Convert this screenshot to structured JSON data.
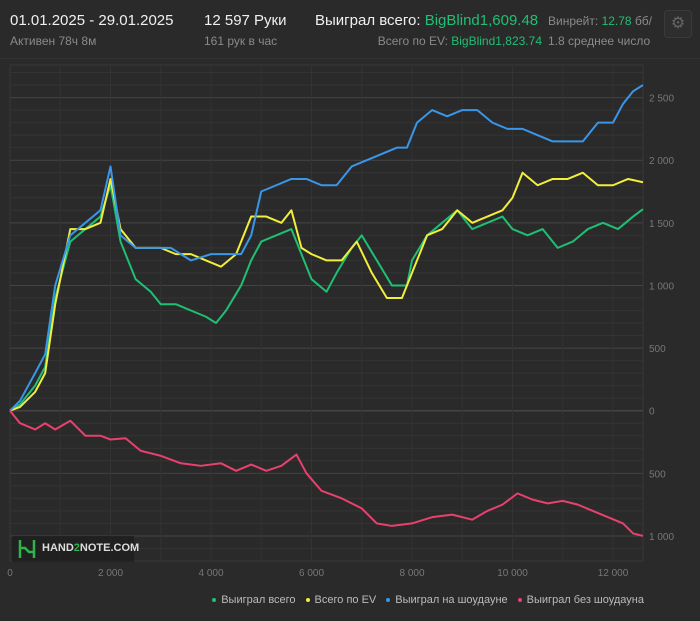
{
  "header": {
    "date_range": "01.01.2025 - 29.01.2025",
    "active": "Активен 78ч 8м",
    "hands": "12 597 Руки",
    "hands_per_hour": "161 рук в час",
    "won_total_label": "Выиграл всего:",
    "won_total_value": "BigBlind1,609.48",
    "ev_label": "Всего по EV:",
    "ev_value": "BigBlind1,823.74",
    "winrate_label": "Винрейт:",
    "winrate_value": "12.78",
    "winrate_unit": "бб/",
    "winrate_sub": "1.8 среднее число",
    "settings_icon": "gear-icon"
  },
  "logo": {
    "text_a": "HAND",
    "text_b": "2",
    "text_c": "NOTE.COM"
  },
  "chart_data": {
    "type": "line",
    "xlim": [
      0,
      12597
    ],
    "ylim": [
      -1200,
      2760
    ],
    "x_ticks": [
      0,
      2000,
      4000,
      6000,
      8000,
      10000,
      12000
    ],
    "x_tick_labels": [
      "0",
      "2 000",
      "4 000",
      "6 000",
      "8 000",
      "10 000",
      "12 000"
    ],
    "y_ticks": [
      2500,
      2000,
      1500,
      1000,
      500,
      0,
      -500,
      -1000
    ],
    "y_tick_labels": [
      "2 500",
      "2 000",
      "1 500",
      "1 000",
      "500",
      "0",
      "500",
      "1 000"
    ],
    "grid": true,
    "legend_position": "bottom-right",
    "series": [
      {
        "name": "Выиграл всего",
        "color": "#1fbf74",
        "points": [
          [
            0,
            0
          ],
          [
            200,
            50
          ],
          [
            500,
            200
          ],
          [
            700,
            350
          ],
          [
            900,
            900
          ],
          [
            1200,
            1350
          ],
          [
            1500,
            1450
          ],
          [
            1800,
            1550
          ],
          [
            2000,
            1800
          ],
          [
            2200,
            1350
          ],
          [
            2500,
            1050
          ],
          [
            2800,
            950
          ],
          [
            3000,
            850
          ],
          [
            3300,
            850
          ],
          [
            3600,
            800
          ],
          [
            3900,
            750
          ],
          [
            4100,
            700
          ],
          [
            4300,
            800
          ],
          [
            4600,
            1000
          ],
          [
            4800,
            1200
          ],
          [
            5000,
            1350
          ],
          [
            5300,
            1400
          ],
          [
            5600,
            1450
          ],
          [
            5800,
            1250
          ],
          [
            6000,
            1050
          ],
          [
            6300,
            950
          ],
          [
            6500,
            1100
          ],
          [
            6800,
            1300
          ],
          [
            7000,
            1400
          ],
          [
            7300,
            1200
          ],
          [
            7600,
            1000
          ],
          [
            7900,
            1000
          ],
          [
            8000,
            1200
          ],
          [
            8300,
            1400
          ],
          [
            8600,
            1500
          ],
          [
            8900,
            1600
          ],
          [
            9200,
            1450
          ],
          [
            9500,
            1500
          ],
          [
            9800,
            1550
          ],
          [
            10000,
            1450
          ],
          [
            10300,
            1400
          ],
          [
            10600,
            1450
          ],
          [
            10900,
            1300
          ],
          [
            11200,
            1350
          ],
          [
            11500,
            1450
          ],
          [
            11800,
            1500
          ],
          [
            12100,
            1450
          ],
          [
            12400,
            1550
          ],
          [
            12597,
            1609
          ]
        ]
      },
      {
        "name": "Всего по EV",
        "color": "#f2ee3b",
        "points": [
          [
            0,
            0
          ],
          [
            200,
            30
          ],
          [
            500,
            150
          ],
          [
            700,
            300
          ],
          [
            900,
            850
          ],
          [
            1200,
            1450
          ],
          [
            1500,
            1450
          ],
          [
            1800,
            1500
          ],
          [
            2000,
            1850
          ],
          [
            2200,
            1450
          ],
          [
            2500,
            1300
          ],
          [
            2800,
            1300
          ],
          [
            3000,
            1300
          ],
          [
            3300,
            1250
          ],
          [
            3600,
            1250
          ],
          [
            3900,
            1200
          ],
          [
            4200,
            1150
          ],
          [
            4500,
            1250
          ],
          [
            4800,
            1550
          ],
          [
            5100,
            1550
          ],
          [
            5400,
            1500
          ],
          [
            5600,
            1600
          ],
          [
            5800,
            1300
          ],
          [
            6000,
            1250
          ],
          [
            6300,
            1200
          ],
          [
            6600,
            1200
          ],
          [
            6900,
            1350
          ],
          [
            7200,
            1100
          ],
          [
            7500,
            900
          ],
          [
            7800,
            900
          ],
          [
            8000,
            1100
          ],
          [
            8300,
            1400
          ],
          [
            8600,
            1450
          ],
          [
            8900,
            1600
          ],
          [
            9200,
            1500
          ],
          [
            9500,
            1550
          ],
          [
            9800,
            1600
          ],
          [
            10000,
            1700
          ],
          [
            10200,
            1900
          ],
          [
            10500,
            1800
          ],
          [
            10800,
            1850
          ],
          [
            11100,
            1850
          ],
          [
            11400,
            1900
          ],
          [
            11700,
            1800
          ],
          [
            12000,
            1800
          ],
          [
            12300,
            1850
          ],
          [
            12597,
            1824
          ]
        ]
      },
      {
        "name": "Выиграл на шоудауне",
        "color": "#3a96e8",
        "points": [
          [
            0,
            0
          ],
          [
            200,
            80
          ],
          [
            500,
            300
          ],
          [
            700,
            450
          ],
          [
            900,
            1000
          ],
          [
            1200,
            1400
          ],
          [
            1500,
            1500
          ],
          [
            1800,
            1600
          ],
          [
            2000,
            1950
          ],
          [
            2200,
            1400
          ],
          [
            2500,
            1300
          ],
          [
            2800,
            1300
          ],
          [
            3200,
            1300
          ],
          [
            3600,
            1200
          ],
          [
            4000,
            1250
          ],
          [
            4300,
            1250
          ],
          [
            4600,
            1250
          ],
          [
            4800,
            1400
          ],
          [
            5000,
            1750
          ],
          [
            5300,
            1800
          ],
          [
            5600,
            1850
          ],
          [
            5900,
            1850
          ],
          [
            6200,
            1800
          ],
          [
            6500,
            1800
          ],
          [
            6800,
            1950
          ],
          [
            7100,
            2000
          ],
          [
            7400,
            2050
          ],
          [
            7700,
            2100
          ],
          [
            7900,
            2100
          ],
          [
            8100,
            2300
          ],
          [
            8400,
            2400
          ],
          [
            8700,
            2350
          ],
          [
            9000,
            2400
          ],
          [
            9300,
            2400
          ],
          [
            9600,
            2300
          ],
          [
            9900,
            2250
          ],
          [
            10200,
            2250
          ],
          [
            10500,
            2200
          ],
          [
            10800,
            2150
          ],
          [
            11100,
            2150
          ],
          [
            11400,
            2150
          ],
          [
            11700,
            2300
          ],
          [
            12000,
            2300
          ],
          [
            12200,
            2450
          ],
          [
            12400,
            2550
          ],
          [
            12597,
            2600
          ]
        ]
      },
      {
        "name": "Выиграл без шоудауна",
        "color": "#e8416f",
        "points": [
          [
            0,
            0
          ],
          [
            200,
            -100
          ],
          [
            500,
            -150
          ],
          [
            700,
            -100
          ],
          [
            900,
            -150
          ],
          [
            1200,
            -80
          ],
          [
            1500,
            -200
          ],
          [
            1800,
            -200
          ],
          [
            2000,
            -230
          ],
          [
            2300,
            -220
          ],
          [
            2600,
            -320
          ],
          [
            3000,
            -360
          ],
          [
            3400,
            -420
          ],
          [
            3800,
            -440
          ],
          [
            4200,
            -420
          ],
          [
            4500,
            -480
          ],
          [
            4800,
            -430
          ],
          [
            5100,
            -480
          ],
          [
            5400,
            -440
          ],
          [
            5700,
            -350
          ],
          [
            5900,
            -500
          ],
          [
            6200,
            -640
          ],
          [
            6600,
            -700
          ],
          [
            7000,
            -780
          ],
          [
            7300,
            -900
          ],
          [
            7600,
            -920
          ],
          [
            8000,
            -900
          ],
          [
            8400,
            -850
          ],
          [
            8800,
            -830
          ],
          [
            9200,
            -870
          ],
          [
            9500,
            -800
          ],
          [
            9800,
            -750
          ],
          [
            10100,
            -660
          ],
          [
            10400,
            -710
          ],
          [
            10700,
            -740
          ],
          [
            11000,
            -720
          ],
          [
            11300,
            -750
          ],
          [
            11600,
            -800
          ],
          [
            11900,
            -850
          ],
          [
            12200,
            -900
          ],
          [
            12400,
            -980
          ],
          [
            12597,
            -1000
          ]
        ]
      }
    ]
  }
}
